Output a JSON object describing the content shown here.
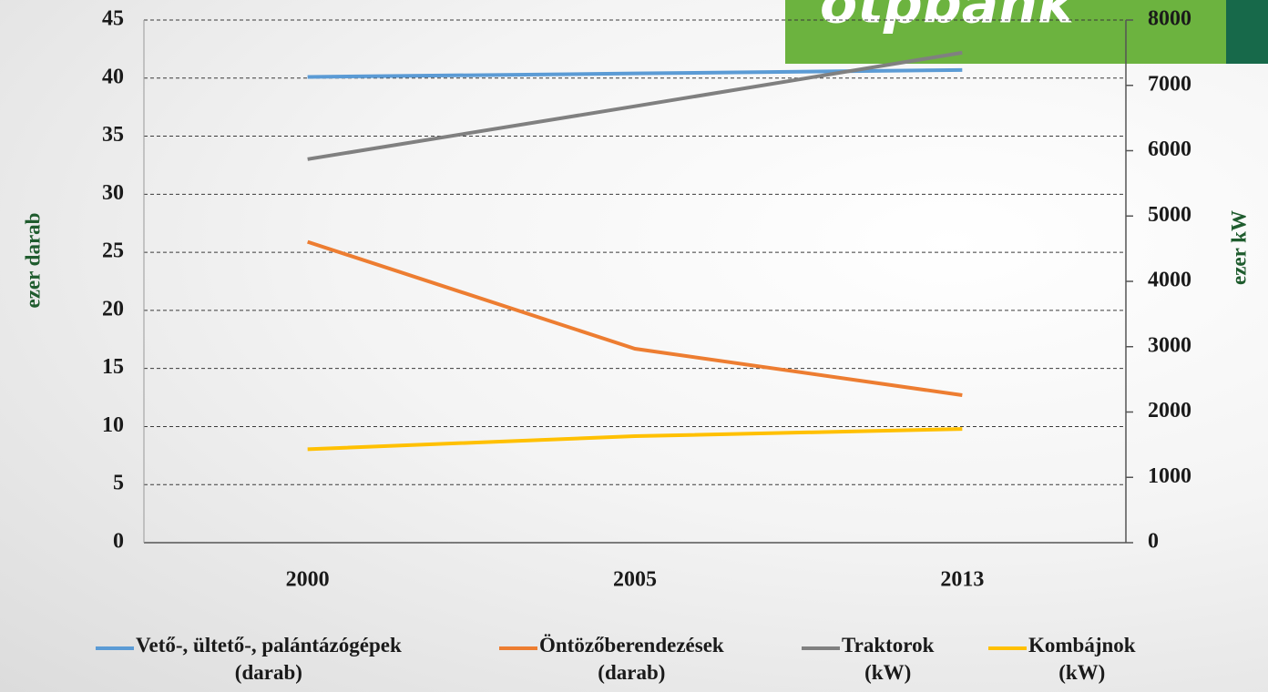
{
  "chart_data": {
    "type": "line",
    "logo": "otpbank",
    "categories": [
      "2000",
      "2005",
      "2013"
    ],
    "ylabel": "ezer darab",
    "y2label": "ezer kW",
    "ylim": [
      0,
      45
    ],
    "yticks": [
      0,
      5,
      10,
      15,
      20,
      25,
      30,
      35,
      40,
      45
    ],
    "y2lim": [
      0,
      8000
    ],
    "y2ticks": [
      0,
      1000,
      2000,
      3000,
      4000,
      5000,
      6000,
      7000,
      8000
    ],
    "grid": true,
    "legend": "bottom",
    "series": [
      {
        "name": "Vető-, ültető-, palántázógépek\n(darab)",
        "color": "#5b9bd5",
        "values": [
          40.1,
          40.4,
          40.7
        ]
      },
      {
        "name": "Öntözőberendezések\n(darab)",
        "color": "#ed7d31",
        "values": [
          25.9,
          16.7,
          12.7
        ]
      },
      {
        "name": "Traktorok\n(kW)",
        "color": "#808080",
        "axis": "y2",
        "values": [
          5870,
          6680,
          7500
        ]
      },
      {
        "name": "Kombájnok\n(kW)",
        "color": "#ffc000",
        "axis": "y2",
        "values": [
          1430,
          1630,
          1740
        ]
      }
    ]
  }
}
